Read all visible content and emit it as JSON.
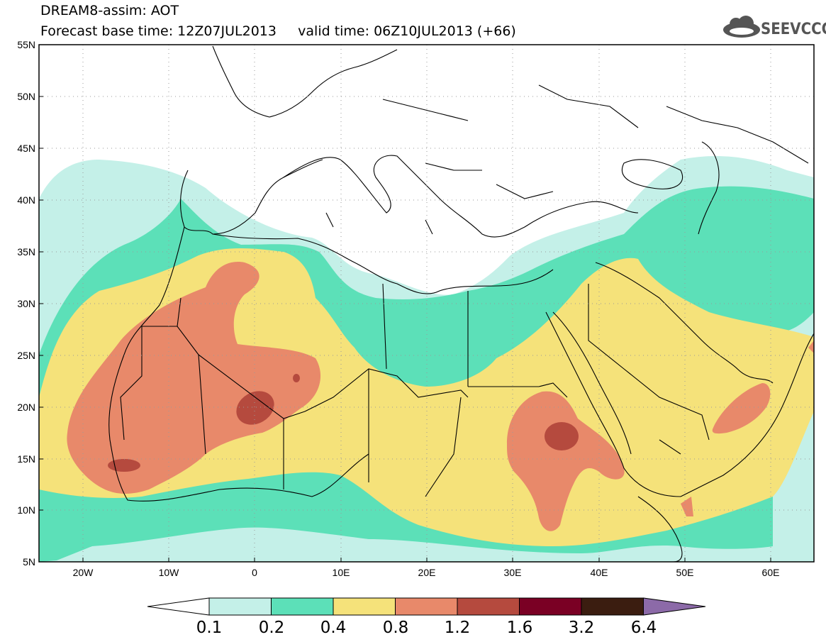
{
  "header": {
    "line1": "DREAM8-assim: AOT",
    "line2": "Forecast base time: 12Z07JUL2013     valid time: 06Z10JUL2013 (+66)",
    "logo_text": "SEEVCCC"
  },
  "map": {
    "lon_range": [
      -25,
      65
    ],
    "lat_range": [
      5,
      55
    ],
    "lat_ticks": [
      "55N",
      "50N",
      "45N",
      "40N",
      "35N",
      "30N",
      "25N",
      "20N",
      "15N",
      "10N",
      "5N"
    ],
    "lon_ticks": [
      "20W",
      "10W",
      "0",
      "10E",
      "20E",
      "30E",
      "40E",
      "50E",
      "60E"
    ],
    "grid": "dotted"
  },
  "colorbar": {
    "labels": [
      "0.1",
      "0.2",
      "0.4",
      "0.8",
      "1.2",
      "1.6",
      "3.2",
      "6.4"
    ],
    "colors": [
      "#c4f0e8",
      "#5ce0b8",
      "#f5e27a",
      "#e8896a",
      "#b54a3e",
      "#7a0024",
      "#3b1d10"
    ],
    "over_color": "#8c6aa8",
    "under_color": "#ffffff"
  }
}
